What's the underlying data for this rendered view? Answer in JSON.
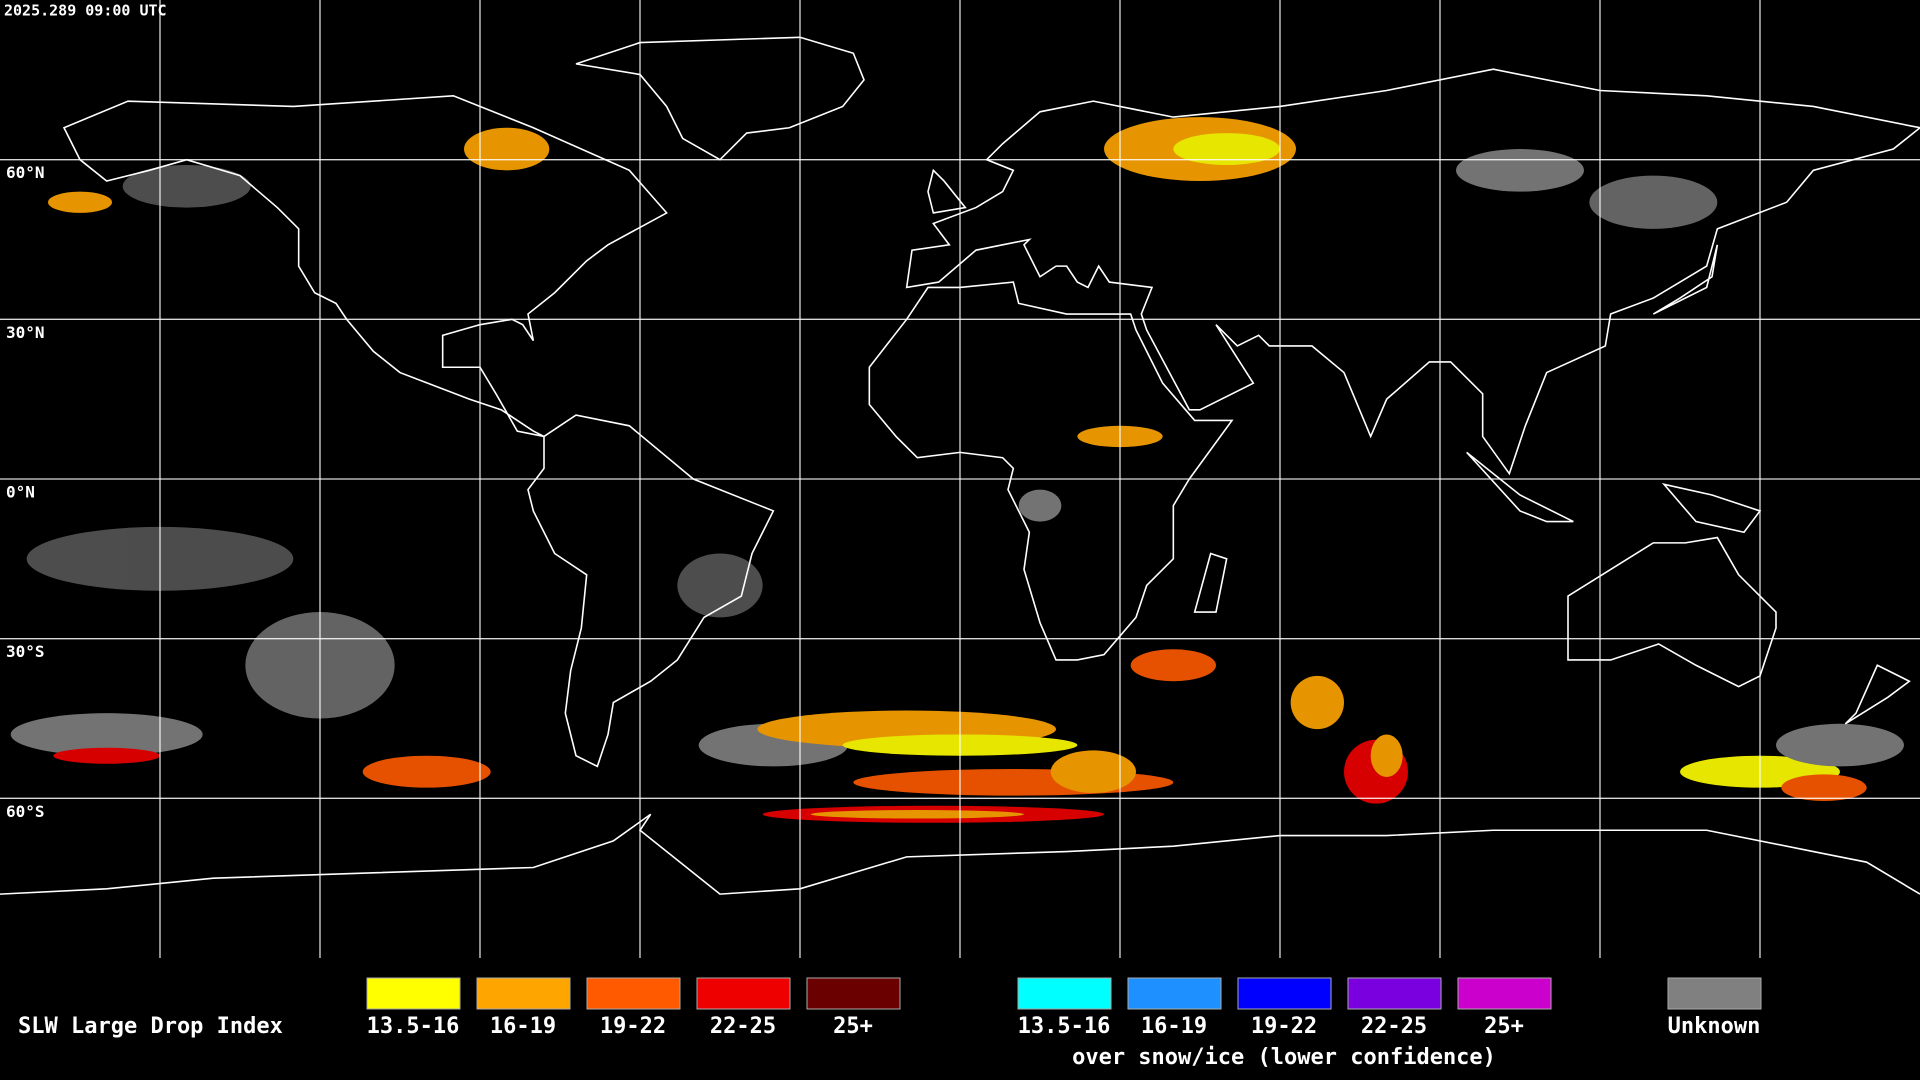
{
  "header": {
    "timestamp": "2025.289 09:00 UTC"
  },
  "map": {
    "lat_labels": [
      "60°N",
      "30°N",
      "0°N",
      "30°S",
      "60°S"
    ]
  },
  "legend": {
    "title": "SLW Large Drop Index",
    "groups": [
      {
        "items": [
          {
            "label": "13.5-16",
            "color": "#ffff00"
          },
          {
            "label": "16-19",
            "color": "#ffa500"
          },
          {
            "label": "19-22",
            "color": "#ff5a00"
          },
          {
            "label": "22-25",
            "color": "#ee0000"
          },
          {
            "label": "25+",
            "color": "#6a0000"
          }
        ]
      },
      {
        "items": [
          {
            "label": "13.5-16",
            "color": "#00ffff"
          },
          {
            "label": "16-19",
            "color": "#1e90ff"
          },
          {
            "label": "19-22",
            "color": "#0000ff"
          },
          {
            "label": "22-25",
            "color": "#7a00e0"
          },
          {
            "label": "25+",
            "color": "#cc00cc"
          }
        ]
      }
    ],
    "snow_note": "over snow/ice (lower confidence)",
    "unknown": {
      "label": "Unknown",
      "color": "#808080"
    }
  }
}
